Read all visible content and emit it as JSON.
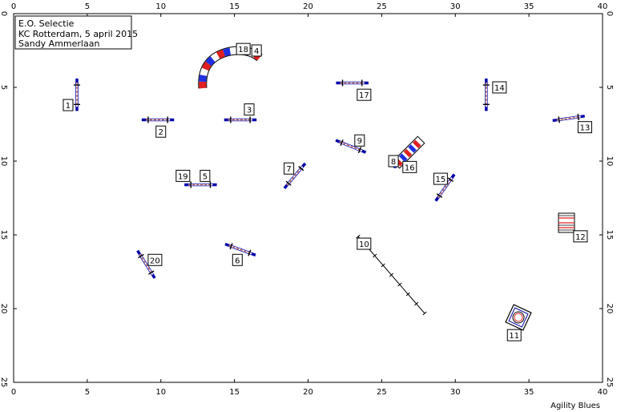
{
  "header": {
    "line1": "E.O. Selectie",
    "line2": "KC Rotterdam, 5 april 2015",
    "line3": "Sandy Ammerlaan"
  },
  "footer": {
    "brand": "Agility Blues"
  },
  "axes": {
    "x_ticks": [
      "0",
      "5",
      "10",
      "15",
      "20",
      "25",
      "30",
      "35",
      "40"
    ],
    "y_ticks": [
      "0",
      "5",
      "10",
      "15",
      "20",
      "25"
    ],
    "x_range": [
      0,
      40
    ],
    "y_range": [
      0,
      25
    ]
  },
  "colors": {
    "pole": "#0000aa",
    "red": "#e02020",
    "blue": "#2030e0",
    "bar": "#c05030",
    "frame": "#000000"
  },
  "obstacles": {
    "jumps": [
      {
        "id": "jump-1",
        "x": 4.3,
        "y": 5.5,
        "angle": 90,
        "len": 2.2
      },
      {
        "id": "jump-2",
        "x": 9.8,
        "y": 7.2,
        "angle": 0,
        "len": 2.2
      },
      {
        "id": "jump-3",
        "x": 15.4,
        "y": 7.2,
        "angle": 0,
        "len": 2.2
      },
      {
        "id": "jump-5",
        "x": 12.7,
        "y": 11.6,
        "angle": 0,
        "len": 2.2
      },
      {
        "id": "jump-6",
        "x": 15.4,
        "y": 16.0,
        "angle": 20,
        "len": 2.2
      },
      {
        "id": "jump-7",
        "x": 19.1,
        "y": 11.0,
        "angle": -50,
        "len": 2.2
      },
      {
        "id": "jump-9",
        "x": 22.9,
        "y": 9.0,
        "angle": 22,
        "len": 2.2
      },
      {
        "id": "jump-13",
        "x": 37.7,
        "y": 7.1,
        "angle": -8,
        "len": 2.2
      },
      {
        "id": "jump-14",
        "x": 32.1,
        "y": 5.5,
        "angle": 90,
        "len": 2.2
      },
      {
        "id": "jump-15",
        "x": 29.3,
        "y": 11.8,
        "angle": -55,
        "len": 2.2
      },
      {
        "id": "jump-17",
        "x": 23.0,
        "y": 4.7,
        "angle": 0,
        "len": 2.2
      },
      {
        "id": "jump-20",
        "x": 9.0,
        "y": 17.0,
        "angle": 58,
        "len": 2.2
      }
    ],
    "labels": [
      {
        "id": "num-1",
        "text": "1",
        "x": 3.7,
        "y": 6.2
      },
      {
        "id": "num-2",
        "text": "2",
        "x": 10.0,
        "y": 8.0
      },
      {
        "id": "num-3",
        "text": "3",
        "x": 16.0,
        "y": 6.5
      },
      {
        "id": "num-4",
        "text": "4",
        "x": 16.5,
        "y": 2.5
      },
      {
        "id": "num-5",
        "text": "5",
        "x": 13.0,
        "y": 11.0
      },
      {
        "id": "num-6",
        "text": "6",
        "x": 15.2,
        "y": 16.7
      },
      {
        "id": "num-7",
        "text": "7",
        "x": 18.7,
        "y": 10.5
      },
      {
        "id": "num-8",
        "text": "8",
        "x": 25.8,
        "y": 10.0
      },
      {
        "id": "num-9",
        "text": "9",
        "x": 23.5,
        "y": 8.6
      },
      {
        "id": "num-10",
        "text": "10",
        "x": 23.8,
        "y": 15.6
      },
      {
        "id": "num-11",
        "text": "11",
        "x": 34.0,
        "y": 21.8
      },
      {
        "id": "num-12",
        "text": "12",
        "x": 38.5,
        "y": 15.1
      },
      {
        "id": "num-13",
        "text": "13",
        "x": 38.8,
        "y": 7.7
      },
      {
        "id": "num-14",
        "text": "14",
        "x": 33.0,
        "y": 5.0
      },
      {
        "id": "num-15",
        "text": "15",
        "x": 29.0,
        "y": 11.2
      },
      {
        "id": "num-16",
        "text": "16",
        "x": 26.9,
        "y": 10.4
      },
      {
        "id": "num-17",
        "text": "17",
        "x": 23.8,
        "y": 5.5
      },
      {
        "id": "num-18",
        "text": "18",
        "x": 15.6,
        "y": 2.4
      },
      {
        "id": "num-19",
        "text": "19",
        "x": 11.5,
        "y": 11.0
      },
      {
        "id": "num-20",
        "text": "20",
        "x": 9.6,
        "y": 16.7
      }
    ]
  }
}
